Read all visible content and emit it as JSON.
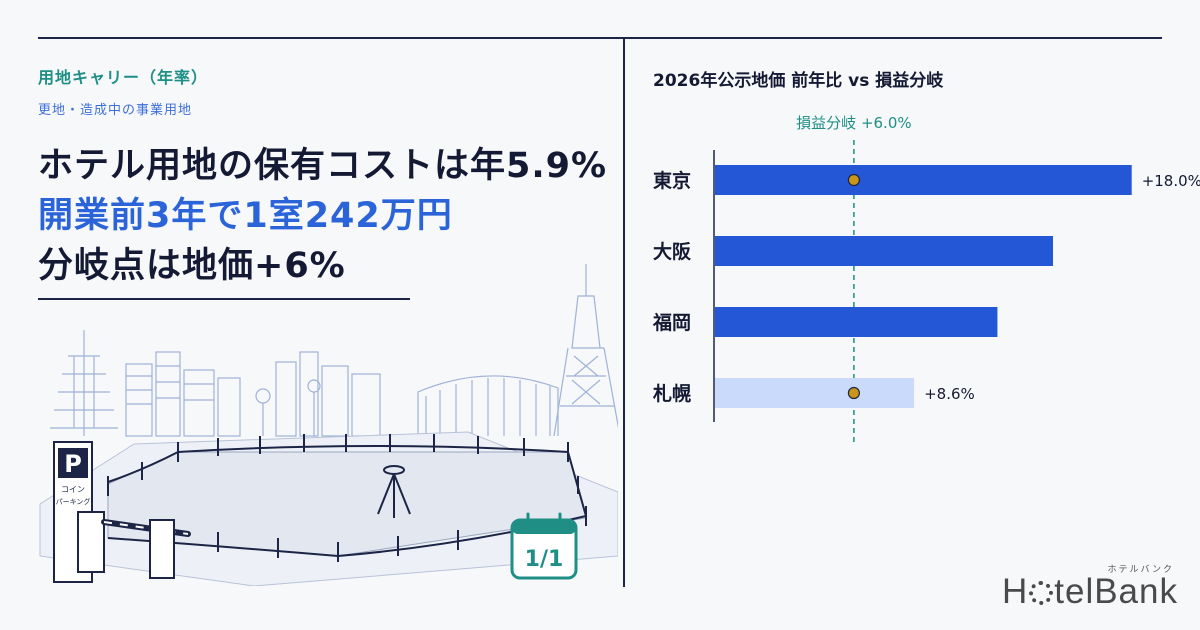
{
  "header": {
    "kicker": "用地キャリー（年率）",
    "subheading": "更地・造成中の事業用地",
    "headline_line1": "ホテル用地の保有コストは年5.9%",
    "headline_line2": "開業前3年で1室242万円",
    "headline_line3": "分岐点は地価+6%"
  },
  "illustration": {
    "parking_sign": "P",
    "parking_label_1": "コイン",
    "parking_label_2": "パーキング",
    "calendar_label": "1/1"
  },
  "chart_data": {
    "type": "bar",
    "orientation": "horizontal",
    "title": "2026年公示地価 前年比 vs 損益分岐",
    "categories": [
      "東京",
      "大阪",
      "福岡",
      "札幌"
    ],
    "values": [
      18.0,
      14.6,
      12.2,
      8.6
    ],
    "data_labels": [
      "+18.0%",
      "",
      "",
      "+8.6%"
    ],
    "xlim": [
      0,
      20
    ],
    "reference_line": {
      "value": 6.0,
      "label": "損益分岐 +6.0%"
    },
    "grid": false,
    "colors": {
      "bar": "#2457d6",
      "bar_highlight": "#c9dafa",
      "reference": "#1f8f86",
      "marker": "#c9961a"
    }
  },
  "brand": {
    "kana": "ホテルバンク",
    "name_prefix": "H",
    "name_suffix": "telBank"
  }
}
